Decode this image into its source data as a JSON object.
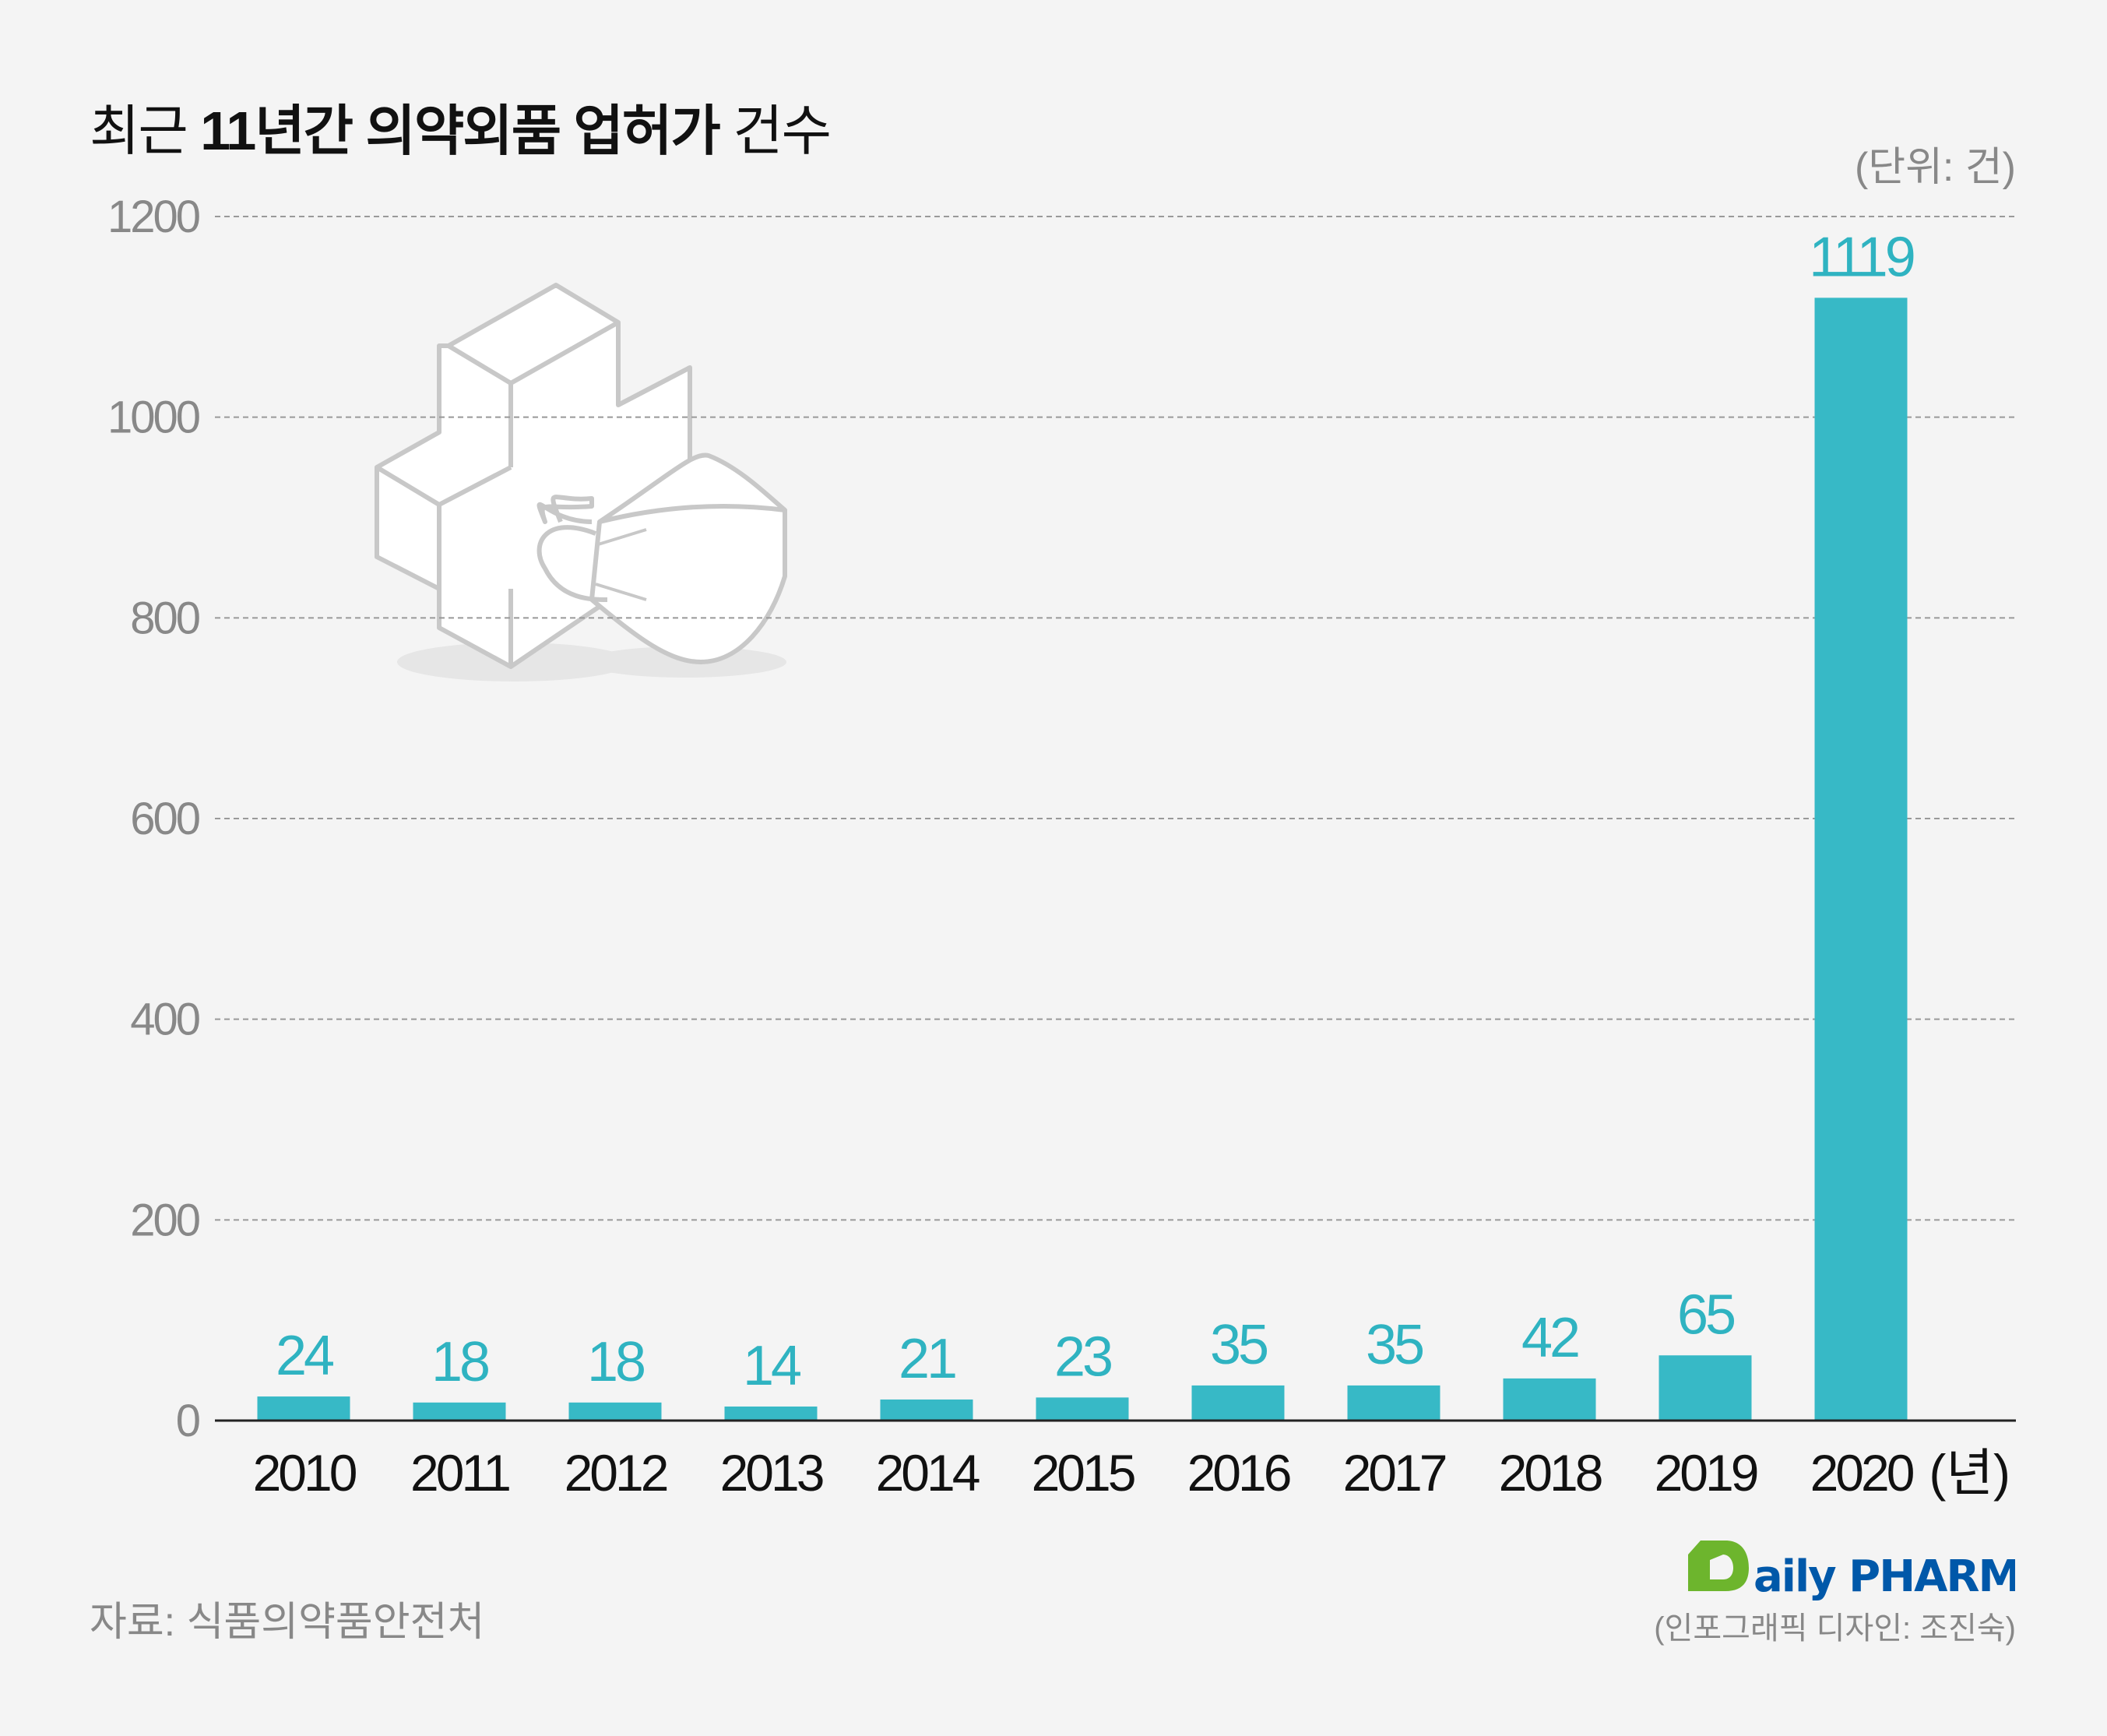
{
  "title": {
    "prefix": "최근 ",
    "bold": "11년간 의약외품 업허가",
    "suffix": " 건수"
  },
  "unit_label": "(단위: 건)",
  "source": "자료: 식품의약품안전처",
  "credit": "(인포그래픽 디자인: 조진숙)",
  "logo": {
    "text": "Daily PHARM",
    "green": "#6db52d",
    "blue": "#0058a9"
  },
  "colors": {
    "bar": "#37b9c6",
    "label": "#2fb3c1",
    "tick": "#888888",
    "grid": "#999999"
  },
  "chart_data": {
    "type": "bar",
    "categories": [
      "2010",
      "2011",
      "2012",
      "2013",
      "2014",
      "2015",
      "2016",
      "2017",
      "2018",
      "2019",
      "2020"
    ],
    "values": [
      24,
      18,
      18,
      14,
      21,
      23,
      35,
      35,
      42,
      65,
      1119
    ],
    "x_unit_suffix": "(년)",
    "ylim": [
      0,
      1200
    ],
    "yticks": [
      0,
      200,
      400,
      600,
      800,
      1000,
      1200
    ],
    "grid": true,
    "grid_style": "dashed"
  }
}
